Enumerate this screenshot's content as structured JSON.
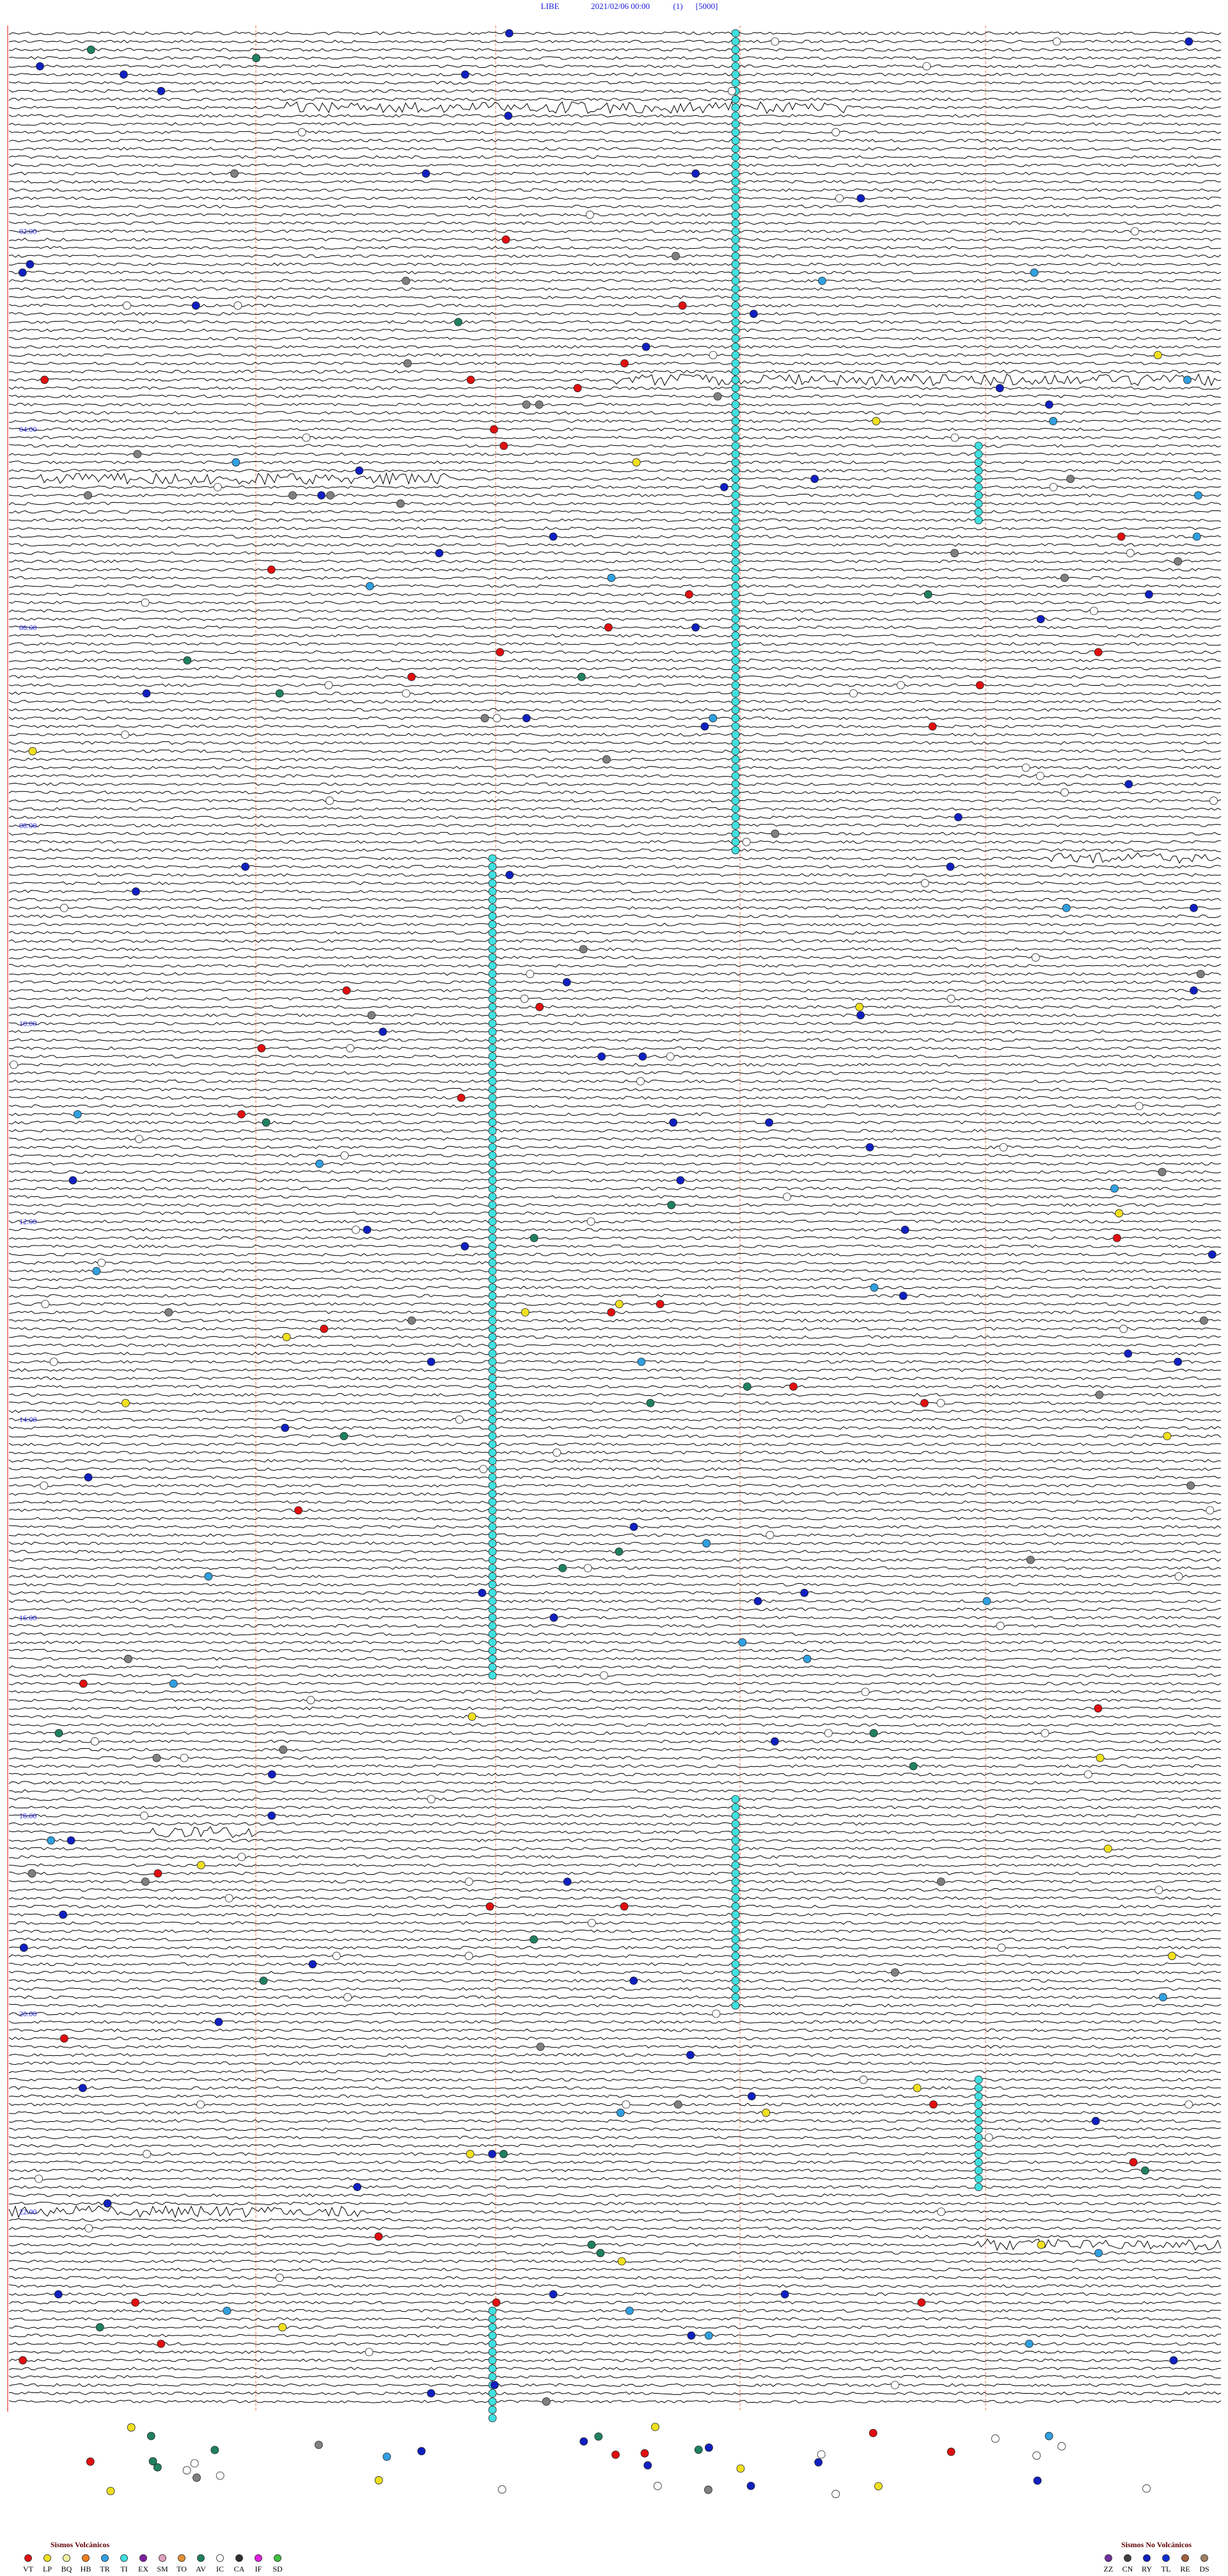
{
  "header": {
    "station": "LIBE",
    "datetime": "2021/02/06 00:00",
    "channel": "(1)",
    "scale": "[5000]"
  },
  "time_labels": [
    "02:00",
    "04:00",
    "06:00",
    "08:00",
    "10:00",
    "12:00",
    "14:00",
    "16:00",
    "18:00",
    "20:00",
    "22:00"
  ],
  "legend": {
    "volcanic": {
      "title": "Sismos Volcánicos",
      "items": [
        {
          "code": "VT",
          "color": "#e01010"
        },
        {
          "code": "LP",
          "color": "#f0e020"
        },
        {
          "code": "BQ",
          "color": "#f0f0a0"
        },
        {
          "code": "HB",
          "color": "#f08020"
        },
        {
          "code": "TR",
          "color": "#30a0e0"
        },
        {
          "code": "TI",
          "color": "#40e0e0"
        },
        {
          "code": "EX",
          "color": "#8020a0"
        },
        {
          "code": "SM",
          "color": "#e0a0c0"
        },
        {
          "code": "TO",
          "color": "#e09030"
        },
        {
          "code": "AV",
          "color": "#208060"
        },
        {
          "code": "IC",
          "color": "#ffffff"
        },
        {
          "code": "CA",
          "color": "#303030"
        },
        {
          "code": "IF",
          "color": "#e020e0"
        },
        {
          "code": "SD",
          "color": "#40c040"
        }
      ]
    },
    "non_volcanic": {
      "title": "Sismos No Volcánicos",
      "items": [
        {
          "code": "ZZ",
          "color": "#7030a0"
        },
        {
          "code": "CN",
          "color": "#404040"
        },
        {
          "code": "RY",
          "color": "#1020c0"
        },
        {
          "code": "TL",
          "color": "#1030d0"
        },
        {
          "code": "RE",
          "color": "#a06040"
        },
        {
          "code": "DS",
          "color": "#a08060"
        }
      ]
    }
  }
}
